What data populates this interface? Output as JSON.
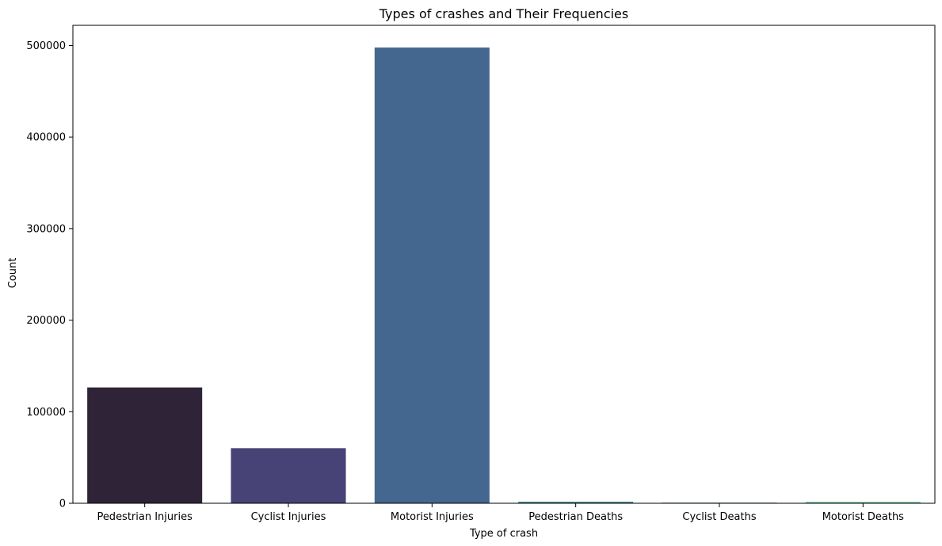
{
  "chart_data": {
    "type": "bar",
    "title": "Types of crashes and Their Frequencies",
    "xlabel": "Type of crash",
    "ylabel": "Count",
    "categories": [
      "Pedestrian Injuries",
      "Cyclist Injuries",
      "Motorist Injuries",
      "Pedestrian Deaths",
      "Cyclist Deaths",
      "Motorist Deaths"
    ],
    "values": [
      126500,
      60200,
      497700,
      1700,
      650,
      1450
    ],
    "colors": [
      "#2e2337",
      "#474376",
      "#44678f",
      "#3a8a8c",
      "#2f6e6d",
      "#5cc48e"
    ],
    "ylim": [
      0,
      522000
    ],
    "yticks": [
      0,
      100000,
      200000,
      300000,
      400000,
      500000
    ],
    "grid": false,
    "legend": false
  }
}
